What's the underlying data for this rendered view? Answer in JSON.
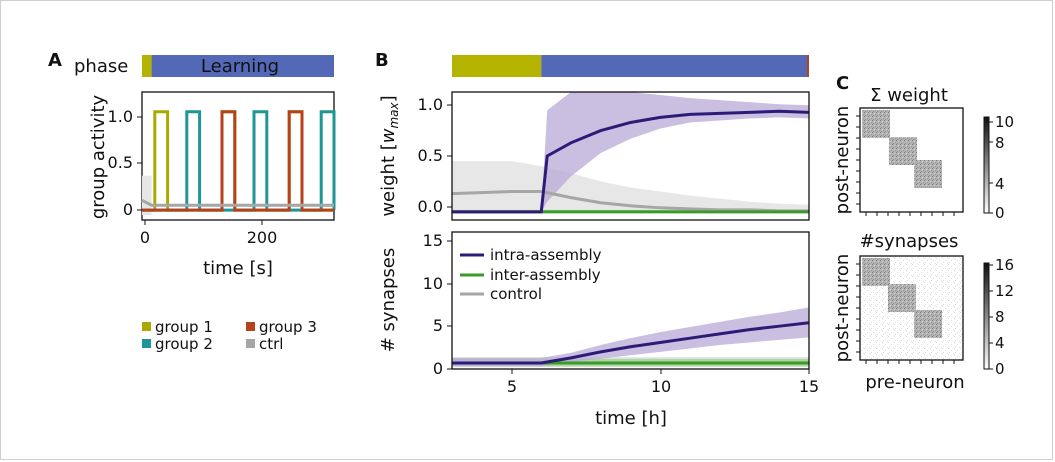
{
  "panels": {
    "A": "A",
    "B": "B",
    "C": "C"
  },
  "panel_A": {
    "phase_label": "phase",
    "phase_text": "Learning",
    "ylabel": "group activity",
    "xlabel": "time [s]",
    "yticks": [
      "0",
      "0.5",
      "1.0"
    ],
    "xticks": [
      "0",
      "200"
    ],
    "legend": [
      {
        "label": "group 1",
        "color": "#a9a900"
      },
      {
        "label": "group 3",
        "color": "#b6421b"
      },
      {
        "label": "group 2",
        "color": "#1e9696"
      },
      {
        "label": "ctrl",
        "color": "#a6a6a6"
      }
    ]
  },
  "panel_B": {
    "weight_ylabel_main": "weight [",
    "weight_ylabel_w": "w",
    "weight_ylabel_sub": "max",
    "weight_ylabel_end": "]",
    "weight_yticks": [
      "0.0",
      "0.5",
      "1.0"
    ],
    "syn_ylabel": "# synapses",
    "syn_yticks": [
      "0",
      "5",
      "10",
      "15"
    ],
    "xticks": [
      "5",
      "10",
      "15"
    ],
    "xlabel": "time [h]",
    "legend": [
      {
        "label": "intra-assembly",
        "color": "#2e1b78"
      },
      {
        "label": "inter-assembly",
        "color": "#3a9a2a"
      },
      {
        "label": "control",
        "color": "#a6a6a6"
      }
    ]
  },
  "panel_C": {
    "top_title": "Σ weight",
    "bottom_title": "#synapses",
    "ylabel": "post-neuron",
    "xlabel": "pre-neuron",
    "top_cbar_ticks": [
      "10",
      "8",
      "4",
      "0"
    ],
    "bottom_cbar_ticks": [
      "16",
      "12",
      "8",
      "4",
      "0"
    ]
  },
  "colors": {
    "learning": "#5468b8",
    "baseline": "#b3b300",
    "group1": "#a9a900",
    "group2": "#1e9696",
    "group3": "#b6421b",
    "ctrl": "#a6a6a6",
    "intra": "#2e1b78",
    "intra_band": "#b8a9d6",
    "inter": "#3a9a2a",
    "control_line": "#a6a6a6"
  },
  "chart_data": [
    {
      "type": "line",
      "title": "",
      "xlabel": "time [s]",
      "ylabel": "group activity",
      "xlim": [
        0,
        300
      ],
      "ylim": [
        -0.1,
        1.2
      ],
      "phases": [
        {
          "label": "",
          "start": 0,
          "end": 15
        },
        {
          "label": "Learning",
          "start": 15,
          "end": 300
        }
      ],
      "series": [
        {
          "name": "group 1",
          "pulses": [
            [
              20,
              40
            ],
            [
              125,
              145
            ],
            [
              230,
              250
            ]
          ],
          "high": 1.0,
          "low": 0.0
        },
        {
          "name": "group 2",
          "pulses": [
            [
              70,
              90
            ],
            [
              175,
              195
            ],
            [
              280,
              300
            ]
          ],
          "high": 1.0,
          "low": 0.0
        },
        {
          "name": "group 3",
          "pulses": [
            [
              125,
              145
            ],
            [
              230,
              250
            ]
          ],
          "high": 1.0,
          "low": 0.0
        },
        {
          "name": "ctrl",
          "x": [
            0,
            15,
            300
          ],
          "y": [
            0.1,
            0.05,
            0.05
          ]
        }
      ]
    },
    {
      "type": "line",
      "title": "",
      "xlabel": "time [h]",
      "ylabel": "weight [w_max]",
      "xlim": [
        3,
        15
      ],
      "ylim": [
        -0.08,
        1.18
      ],
      "phases": [
        {
          "label": "",
          "start": 3,
          "end": 6
        },
        {
          "label": "",
          "start": 6,
          "end": 15
        }
      ],
      "series": [
        {
          "name": "intra-assembly",
          "x": [
            3,
            6,
            6.2,
            7,
            8,
            9,
            10,
            11,
            12,
            13,
            14,
            15
          ],
          "y": [
            0.0,
            0.0,
            0.55,
            0.68,
            0.8,
            0.88,
            0.93,
            0.96,
            0.97,
            0.98,
            0.99,
            0.98
          ],
          "lower": [
            0.0,
            0.0,
            0.1,
            0.35,
            0.58,
            0.72,
            0.82,
            0.88,
            0.9,
            0.92,
            0.93,
            0.92
          ],
          "upper": [
            0.0,
            0.0,
            1.0,
            1.2,
            1.2,
            1.2,
            1.15,
            1.12,
            1.1,
            1.08,
            1.06,
            1.05
          ]
        },
        {
          "name": "inter-assembly",
          "x": [
            3,
            15
          ],
          "y": [
            0.0,
            0.0
          ],
          "lower": [
            0.0,
            0.0
          ],
          "upper": [
            0.02,
            0.02
          ]
        },
        {
          "name": "control",
          "x": [
            3,
            5,
            6,
            7,
            8,
            9,
            10,
            11,
            12,
            13,
            14,
            15
          ],
          "y": [
            0.18,
            0.2,
            0.2,
            0.14,
            0.09,
            0.06,
            0.04,
            0.03,
            0.02,
            0.02,
            0.01,
            0.01
          ],
          "lower": [
            0.0,
            0.0,
            0.0,
            0.0,
            0.0,
            0.0,
            0.0,
            0.0,
            0.0,
            0.0,
            0.0,
            0.0
          ],
          "upper": [
            0.5,
            0.5,
            0.45,
            0.38,
            0.3,
            0.24,
            0.2,
            0.16,
            0.13,
            0.1,
            0.08,
            0.07
          ]
        }
      ]
    },
    {
      "type": "line",
      "title": "",
      "xlabel": "time [h]",
      "ylabel": "# synapses",
      "xlim": [
        3,
        15
      ],
      "ylim": [
        0,
        16
      ],
      "series": [
        {
          "name": "intra-assembly",
          "x": [
            3,
            6,
            7,
            8,
            9,
            10,
            11,
            12,
            13,
            14,
            15
          ],
          "y": [
            0.7,
            0.7,
            1.3,
            2.0,
            2.6,
            3.1,
            3.6,
            4.1,
            4.6,
            5.0,
            5.4
          ],
          "lower": [
            0.3,
            0.3,
            0.8,
            1.2,
            1.6,
            2.0,
            2.4,
            2.8,
            3.1,
            3.4,
            3.7
          ],
          "upper": [
            1.3,
            1.3,
            1.9,
            2.8,
            3.6,
            4.3,
            4.9,
            5.5,
            6.1,
            6.6,
            7.2
          ]
        },
        {
          "name": "inter-assembly",
          "x": [
            3,
            15
          ],
          "y": [
            0.7,
            0.7
          ],
          "lower": [
            0.3,
            0.3
          ],
          "upper": [
            1.2,
            1.2
          ]
        },
        {
          "name": "control",
          "x": [
            3,
            15
          ],
          "y": [
            0.7,
            0.7
          ],
          "lower": [
            0.2,
            0.2
          ],
          "upper": [
            1.4,
            1.4
          ]
        }
      ]
    },
    {
      "type": "heatmap",
      "title": "Σ weight",
      "xlabel": "",
      "ylabel": "post-neuron",
      "colorbar_range": [
        0,
        10
      ],
      "block_diagonal_assemblies": 3
    },
    {
      "type": "heatmap",
      "title": "#synapses",
      "xlabel": "pre-neuron",
      "ylabel": "post-neuron",
      "colorbar_range": [
        0,
        16
      ],
      "block_diagonal_assemblies": 3
    }
  ]
}
